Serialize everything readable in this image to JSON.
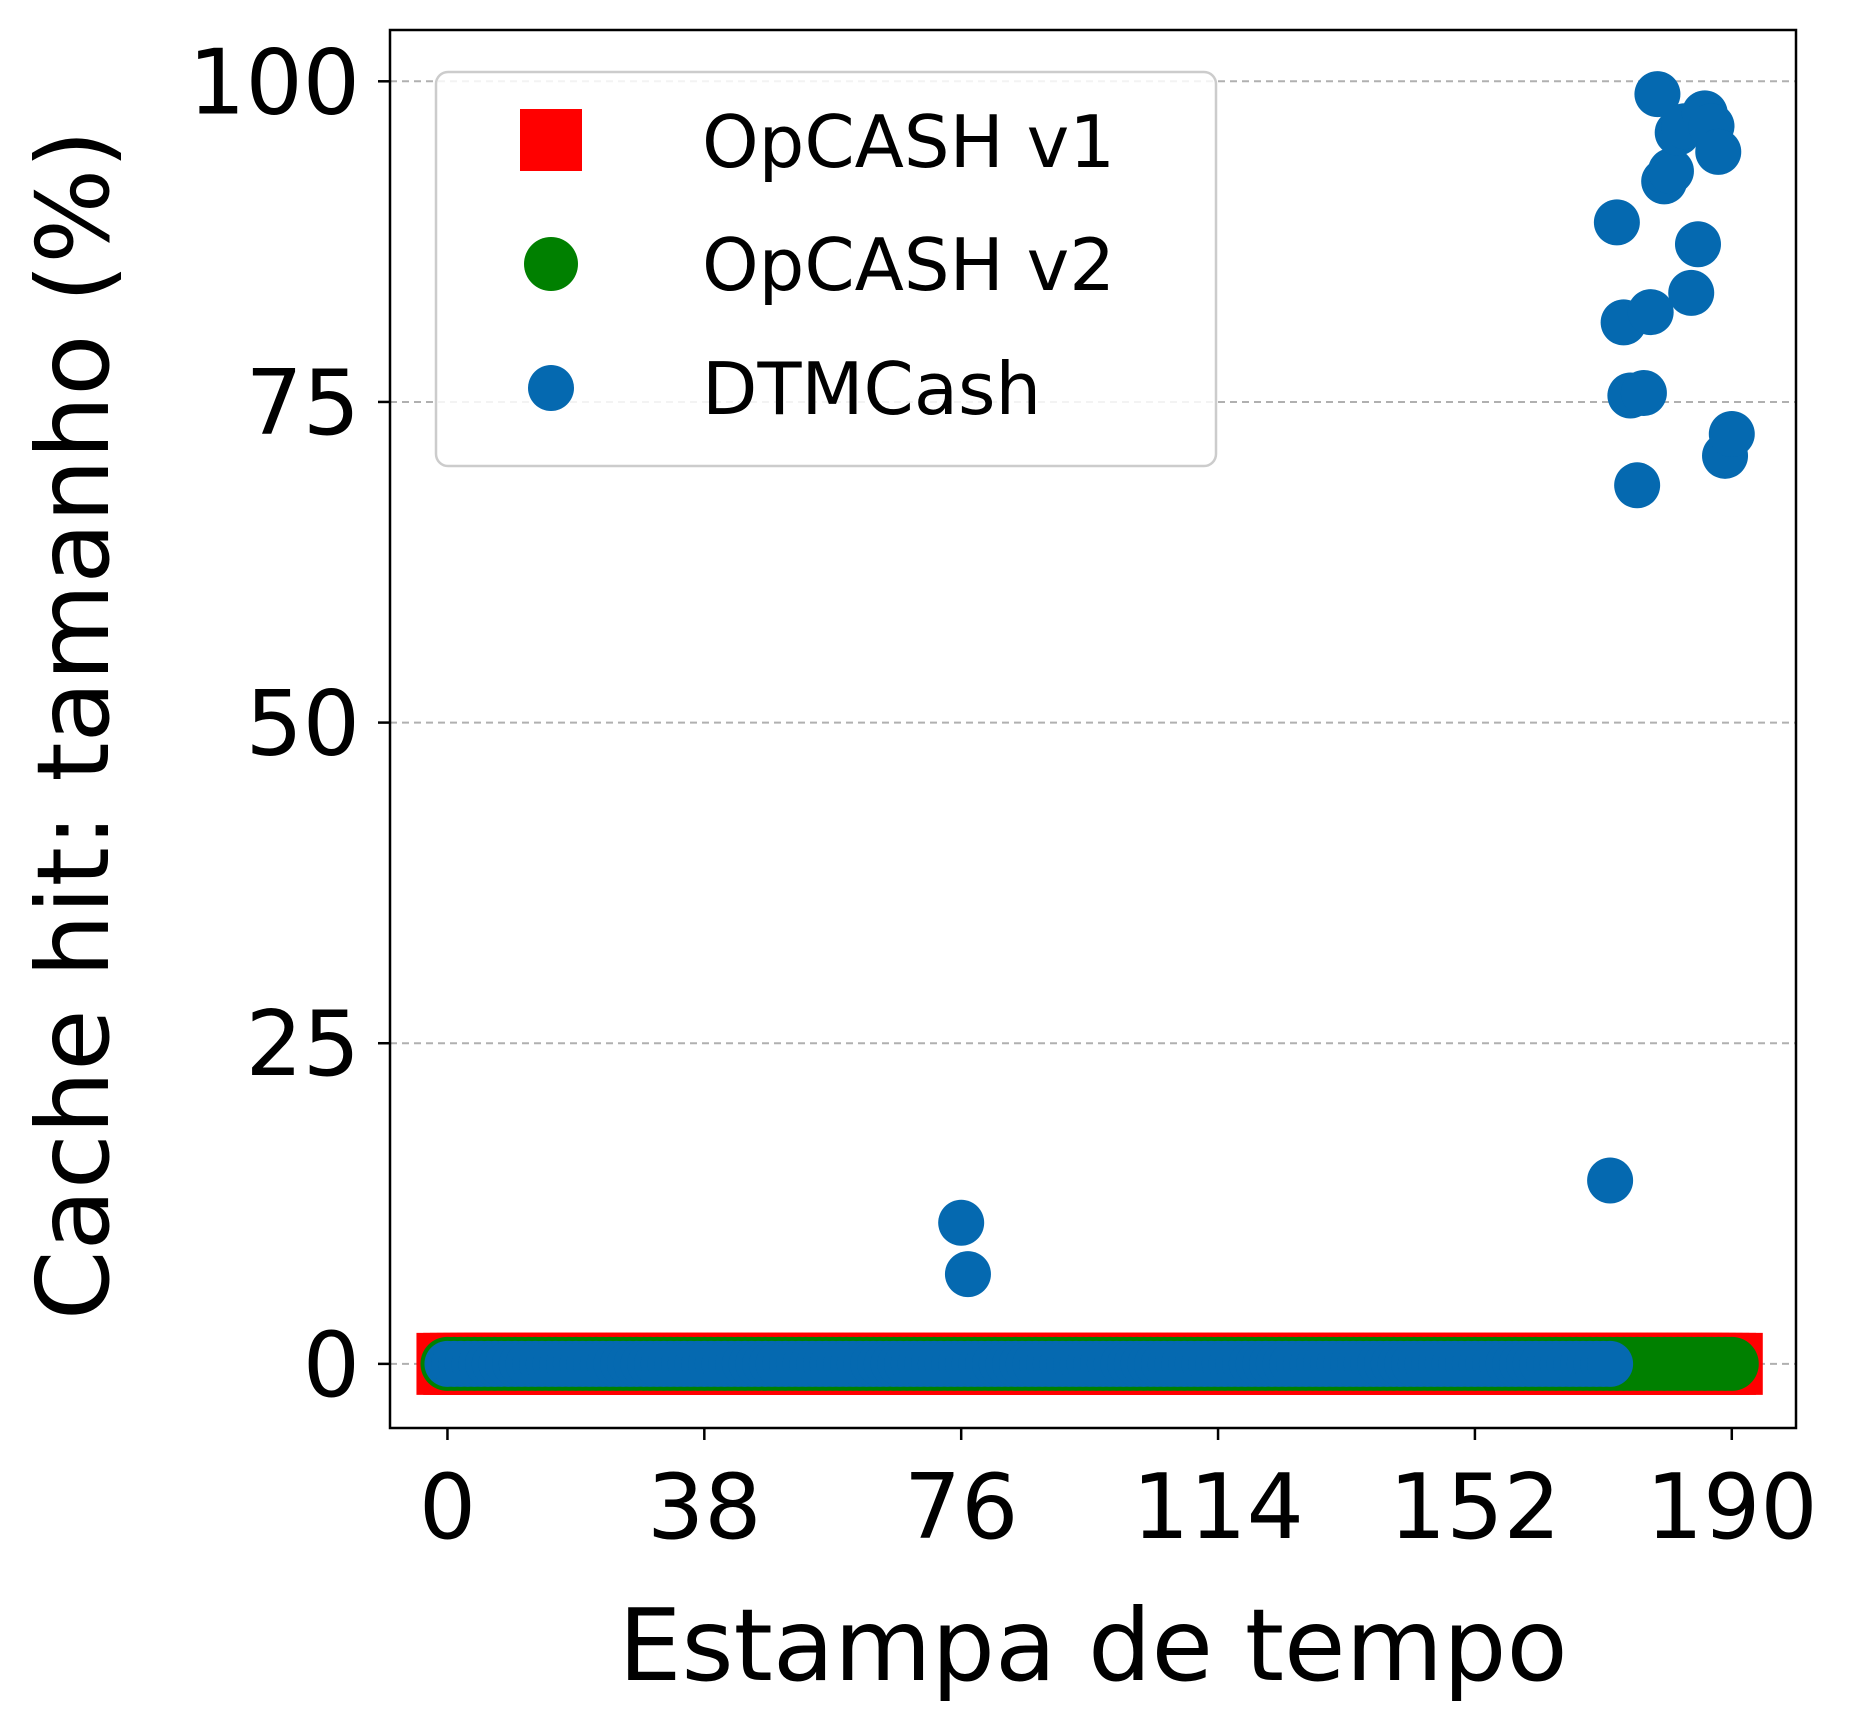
{
  "chart_data": {
    "type": "scatter",
    "title": "",
    "xlabel": "Estampa de tempo",
    "ylabel": "Cache hit: tamanho (%)",
    "xlim": [
      -8.5,
      199.5
    ],
    "ylim": [
      -5,
      104
    ],
    "xticks": [
      0,
      38,
      76,
      114,
      152,
      190
    ],
    "yticks": [
      0,
      25,
      50,
      75,
      100
    ],
    "grid": "y-dashed",
    "legend_position": "upper-left",
    "series": [
      {
        "name": "OpCASH v1",
        "marker": "square",
        "color": "#ff0000",
        "x_range": [
          0,
          190
        ],
        "x_step": 1,
        "y_constant": 0
      },
      {
        "name": "OpCASH v2",
        "marker": "circle",
        "color": "#008000",
        "x_range": [
          0,
          190
        ],
        "x_step": 1,
        "y_constant": 0
      },
      {
        "name": "DTMCash",
        "marker": "circle",
        "color": "#0569b0",
        "zero_x_range": [
          0,
          172
        ],
        "x_step": 1,
        "points": [
          {
            "x": 76,
            "y": 11
          },
          {
            "x": 77,
            "y": 7
          },
          {
            "x": 172,
            "y": 14.3
          },
          {
            "x": 173,
            "y": 89
          },
          {
            "x": 174,
            "y": 81.2
          },
          {
            "x": 175,
            "y": 75.5
          },
          {
            "x": 176,
            "y": 68.5
          },
          {
            "x": 177,
            "y": 75.7
          },
          {
            "x": 178,
            "y": 82
          },
          {
            "x": 179,
            "y": 99
          },
          {
            "x": 180,
            "y": 92.2
          },
          {
            "x": 181,
            "y": 93
          },
          {
            "x": 182,
            "y": 96
          },
          {
            "x": 183,
            "y": 96.5
          },
          {
            "x": 184,
            "y": 83.5
          },
          {
            "x": 185,
            "y": 87.3
          },
          {
            "x": 186,
            "y": 97.5
          },
          {
            "x": 187,
            "y": 96.5
          },
          {
            "x": 188,
            "y": 94.5
          },
          {
            "x": 189,
            "y": 70.8
          },
          {
            "x": 190,
            "y": 72.5
          }
        ]
      }
    ]
  }
}
